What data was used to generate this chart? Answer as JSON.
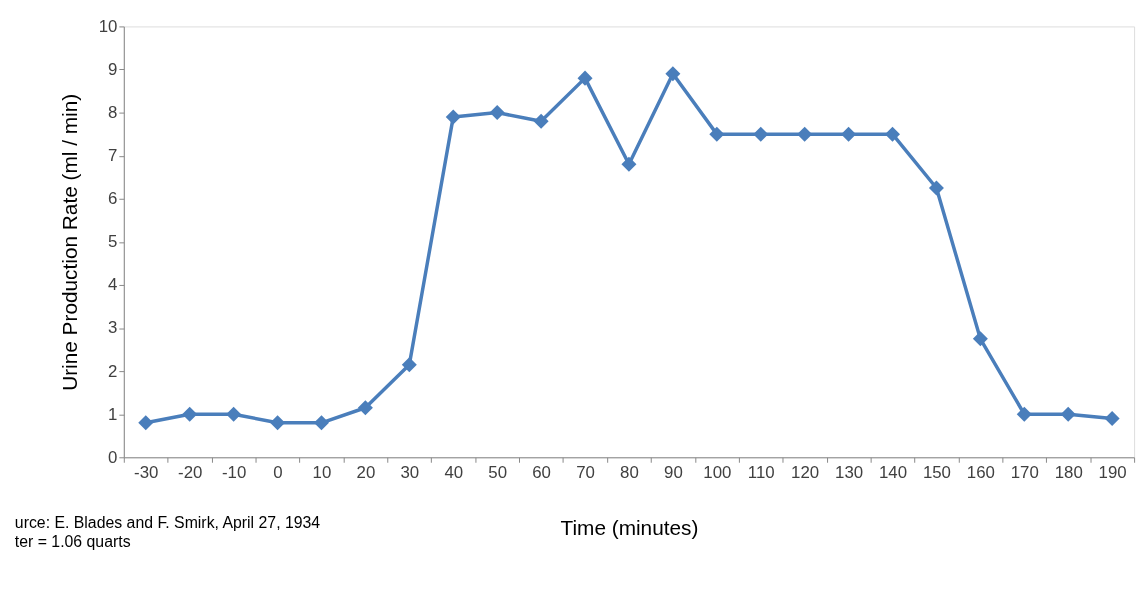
{
  "chart_data": {
    "type": "line",
    "xlabel": "Time (minutes)",
    "ylabel": "Urine Production Rate (ml / min)",
    "categories": [
      "-30",
      "-20",
      "-10",
      "0",
      "10",
      "20",
      "30",
      "40",
      "50",
      "60",
      "70",
      "80",
      "90",
      "100",
      "110",
      "120",
      "130",
      "140",
      "150",
      "160",
      "170",
      "180",
      "190"
    ],
    "series": [
      {
        "color": "#4a7ebb",
        "values": [
          0.8,
          1.0,
          1.0,
          0.8,
          0.8,
          1.15,
          2.15,
          7.9,
          8.0,
          7.8,
          8.8,
          6.8,
          8.9,
          7.5,
          7.5,
          7.5,
          7.5,
          7.5,
          6.25,
          2.75,
          1.0,
          1.0,
          0.9
        ]
      }
    ],
    "ylim": [
      0,
      10
    ],
    "yticks": [
      0,
      1,
      2,
      3,
      4,
      5,
      6,
      7,
      8,
      9,
      10
    ],
    "grid": false,
    "marker": "diamond",
    "line_style": "solid",
    "annotations": [
      "urce: E. Blades and F. Smirk, April 27, 1934",
      "ter = 1.06 quarts"
    ]
  }
}
